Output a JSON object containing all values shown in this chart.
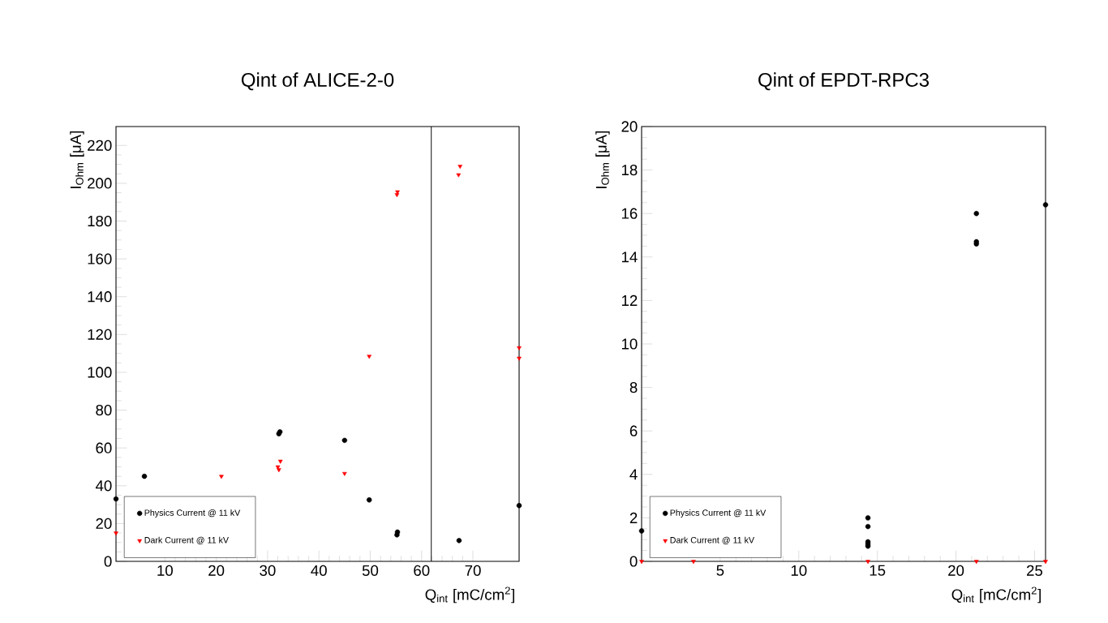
{
  "chart_data": [
    {
      "type": "scatter",
      "title": "Qint of ALICE-2-0",
      "xlabel": "Q$_{int}$ [mC/cm$^{2}$]",
      "ylabel": "I$_{Ohm}$ [μA]",
      "xlim": [
        0.47,
        79
      ],
      "ylim": [
        0,
        230
      ],
      "xticks": [
        10,
        20,
        30,
        40,
        50,
        60,
        70
      ],
      "yticks": [
        0,
        20,
        40,
        60,
        80,
        100,
        120,
        140,
        160,
        180,
        200,
        220
      ],
      "legend": "bottom left",
      "grid": false,
      "ref_lines": [
        {
          "axis": "x",
          "value": 61.9,
          "color": "#000000"
        }
      ],
      "series": [
        {
          "name": "Physics Current @ 11 kV",
          "color": "#000000",
          "marker": "circle",
          "x": [
            0.47,
            6,
            32.2,
            32.4,
            45,
            49.8,
            55.2,
            55.3,
            67.3,
            79
          ],
          "values": [
            33,
            45,
            67.5,
            68.5,
            64,
            32.5,
            14,
            15.5,
            11,
            29.5
          ]
        },
        {
          "name": "Dark Current @ 11 kV",
          "color": "#ff0000",
          "marker": "triangle",
          "x": [
            0.47,
            21,
            32,
            32.2,
            32.5,
            45,
            49.8,
            55.2,
            55.3,
            67.2,
            67.5,
            79,
            79
          ],
          "values": [
            15,
            45,
            50,
            48.5,
            53,
            46.5,
            108.5,
            194,
            195.5,
            204.5,
            209,
            107.5,
            113
          ]
        }
      ]
    },
    {
      "type": "scatter",
      "title": "Qint of EPDT-RPC3",
      "xlabel": "Q$_{int}$ [mC/cm$^{2}$]",
      "ylabel": "I$_{Ohm}$ [μA]",
      "xlim": [
        0,
        25.7
      ],
      "ylim": [
        0,
        20
      ],
      "xticks": [
        5,
        10,
        15,
        20,
        25
      ],
      "yticks": [
        0,
        2,
        4,
        6,
        8,
        10,
        12,
        14,
        16,
        18,
        20
      ],
      "legend": "bottom left",
      "grid": false,
      "series": [
        {
          "name": "Physics Current @ 11 kV",
          "color": "#000000",
          "marker": "circle",
          "x": [
            0,
            14.4,
            14.4,
            14.4,
            14.4,
            14.4,
            21.3,
            21.3,
            21.3,
            25.7
          ],
          "values": [
            1.4,
            2.0,
            1.6,
            0.9,
            0.8,
            0.7,
            16.0,
            14.6,
            14.7,
            16.4
          ]
        },
        {
          "name": "Dark Current @ 11 kV",
          "color": "#ff0000",
          "marker": "triangle",
          "x": [
            0,
            3.3,
            14.4,
            21.3,
            25.7
          ],
          "values": [
            0,
            0,
            0,
            0,
            0
          ]
        }
      ]
    }
  ]
}
